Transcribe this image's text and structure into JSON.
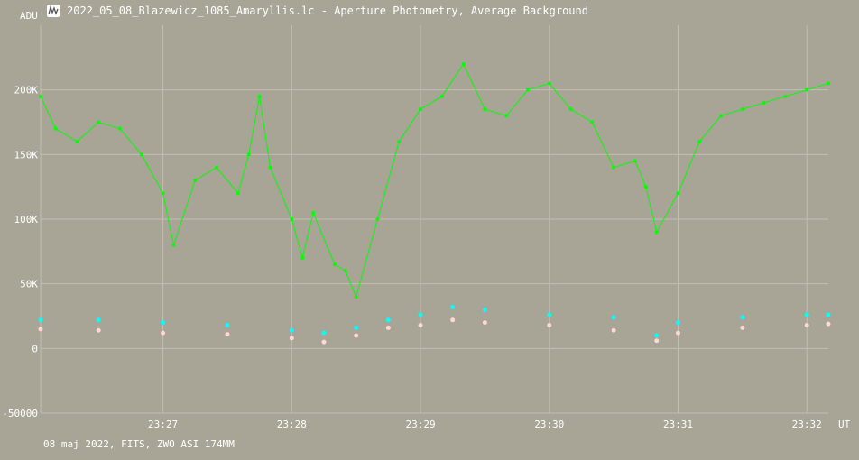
{
  "window": {
    "title": "2022_05_08_Blazewicz_1085_Amaryllis.lc - Aperture Photometry, Average Background",
    "icon": "light-curve-app-icon"
  },
  "footer": {
    "caption": "08 maj 2022, FITS, ZWO ASI 174MM"
  },
  "colors": {
    "background": "#a8a496",
    "grid": "#c2beb2",
    "target": "#00ff00",
    "comparison": "#00ffff",
    "background_series": "#ffd8d0"
  },
  "chart_data": {
    "type": "line",
    "ylabel": "ADU",
    "xlabel": "UT",
    "ylim": [
      -50000,
      250000
    ],
    "xlim": [
      "23:26:03",
      "23:32:10"
    ],
    "y_ticks": [
      {
        "value": 200000,
        "label": "200K"
      },
      {
        "value": 150000,
        "label": "150K"
      },
      {
        "value": 100000,
        "label": "100K"
      },
      {
        "value": 50000,
        "label": "50K"
      },
      {
        "value": 0,
        "label": "0"
      },
      {
        "value": -50000,
        "label": "-50000"
      }
    ],
    "x_ticks": [
      "23:27",
      "23:28",
      "23:29",
      "23:30",
      "23:31",
      "23:32"
    ],
    "grid": true,
    "series": [
      {
        "color": "#00ff00",
        "style": "line+markers",
        "x": [
          "23:26:03",
          "23:26:10",
          "23:26:20",
          "23:26:30",
          "23:26:40",
          "23:26:50",
          "23:27:00",
          "23:27:05",
          "23:27:15",
          "23:27:25",
          "23:27:35",
          "23:27:40",
          "23:27:45",
          "23:27:50",
          "23:28:00",
          "23:28:05",
          "23:28:10",
          "23:28:20",
          "23:28:25",
          "23:28:30",
          "23:28:40",
          "23:28:50",
          "23:29:00",
          "23:29:10",
          "23:29:20",
          "23:29:30",
          "23:29:40",
          "23:29:50",
          "23:30:00",
          "23:30:10",
          "23:30:20",
          "23:30:30",
          "23:30:40",
          "23:30:45",
          "23:30:50",
          "23:31:00",
          "23:31:10",
          "23:31:20",
          "23:31:30",
          "23:31:40",
          "23:31:50",
          "23:32:00",
          "23:32:10"
        ],
        "values": [
          195000,
          170000,
          160000,
          175000,
          170000,
          150000,
          120000,
          80000,
          130000,
          140000,
          120000,
          150000,
          195000,
          140000,
          100000,
          70000,
          105000,
          65000,
          60000,
          40000,
          100000,
          160000,
          185000,
          195000,
          220000,
          185000,
          180000,
          200000,
          205000,
          185000,
          175000,
          140000,
          145000,
          125000,
          90000,
          120000,
          160000,
          180000,
          185000,
          190000,
          195000,
          200000,
          205000
        ]
      },
      {
        "color": "#00ffff",
        "style": "markers",
        "x": [
          "23:26:03",
          "23:26:30",
          "23:27:00",
          "23:27:30",
          "23:28:00",
          "23:28:15",
          "23:28:30",
          "23:28:45",
          "23:29:00",
          "23:29:15",
          "23:29:30",
          "23:30:00",
          "23:30:30",
          "23:30:50",
          "23:31:00",
          "23:31:30",
          "23:32:00",
          "23:32:10"
        ],
        "values": [
          22000,
          22000,
          20000,
          18000,
          14000,
          12000,
          16000,
          22000,
          26000,
          32000,
          30000,
          26000,
          24000,
          10000,
          20000,
          24000,
          26000,
          26000
        ]
      },
      {
        "color": "#ffd8d0",
        "style": "markers",
        "x": [
          "23:26:03",
          "23:26:30",
          "23:27:00",
          "23:27:30",
          "23:28:00",
          "23:28:15",
          "23:28:30",
          "23:28:45",
          "23:29:00",
          "23:29:15",
          "23:29:30",
          "23:30:00",
          "23:30:30",
          "23:30:50",
          "23:31:00",
          "23:31:30",
          "23:32:00",
          "23:32:10"
        ],
        "values": [
          15000,
          14000,
          12000,
          11000,
          8000,
          5000,
          10000,
          16000,
          18000,
          22000,
          20000,
          18000,
          14000,
          6000,
          12000,
          16000,
          18000,
          19000
        ]
      }
    ]
  }
}
